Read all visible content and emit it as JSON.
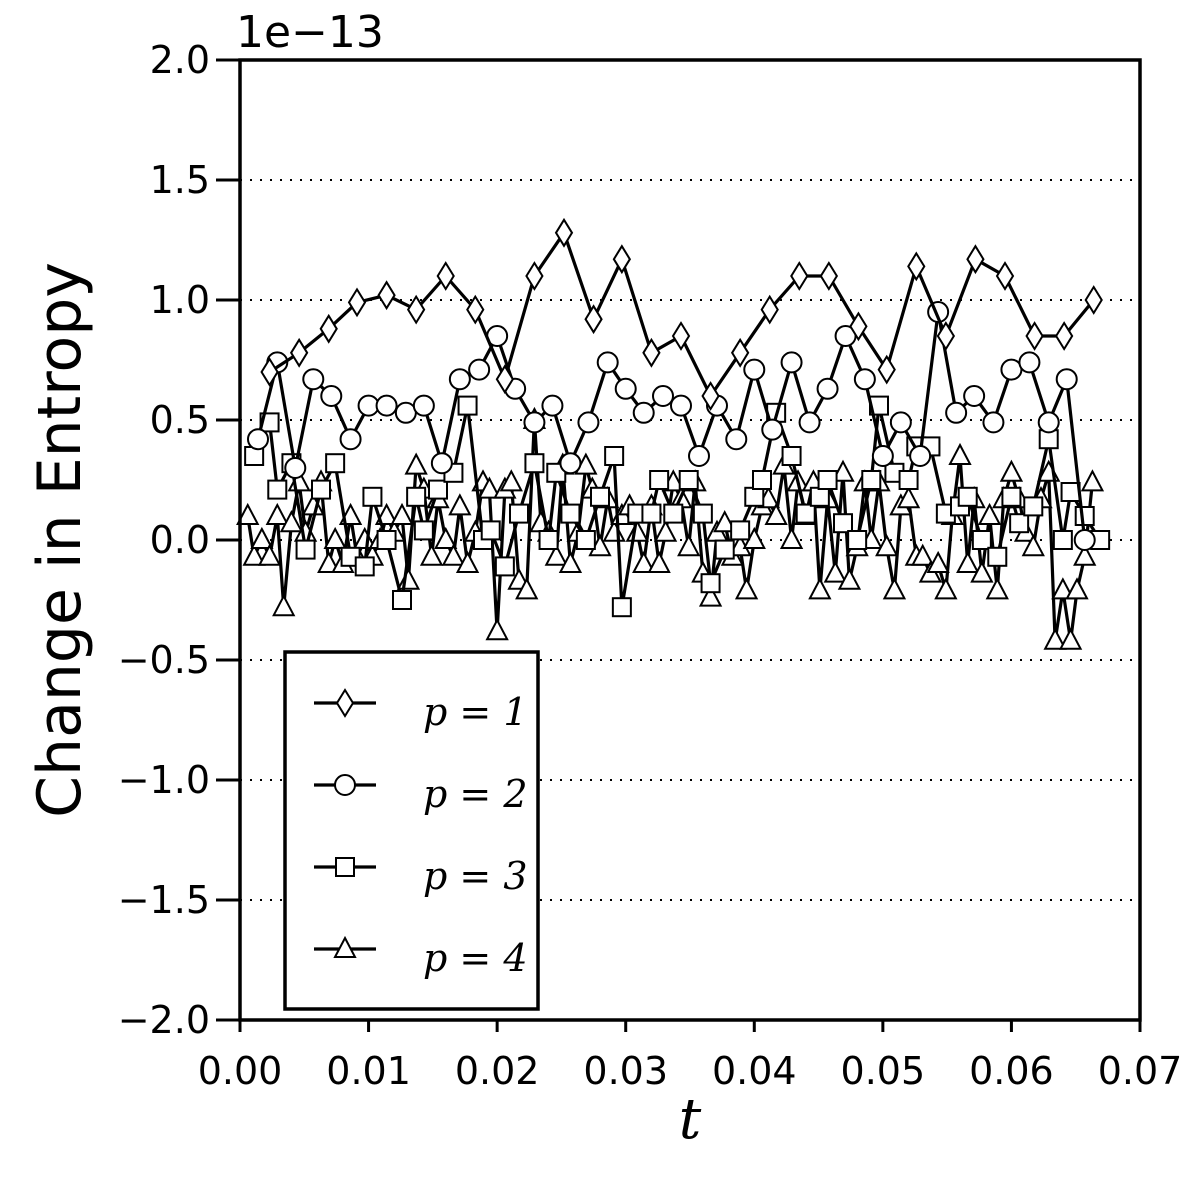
{
  "chart_data": {
    "type": "line",
    "title": "",
    "xlabel": "t",
    "ylabel": "Change in Entropy",
    "y_offset_label": "1e−13",
    "xlim": [
      0.0,
      0.07
    ],
    "ylim": [
      -2.0,
      2.0
    ],
    "x_ticks": [
      0.0,
      0.01,
      0.02,
      0.03,
      0.04,
      0.05,
      0.06,
      0.07
    ],
    "x_tick_labels": [
      "0.00",
      "0.01",
      "0.02",
      "0.03",
      "0.04",
      "0.05",
      "0.06",
      "0.07"
    ],
    "y_ticks": [
      -2.0,
      -1.5,
      -1.0,
      -0.5,
      0.0,
      0.5,
      1.0,
      1.5,
      2.0
    ],
    "y_tick_labels": [
      "−2.0",
      "−1.5",
      "−1.0",
      "−0.5",
      "0.0",
      "0.5",
      "1.0",
      "1.5",
      "2.0"
    ],
    "grid": "horizontal-dotted",
    "legend_position": "lower-left",
    "line_color": "#000000",
    "marker_fill": "#ffffff",
    "series": [
      {
        "name": "p = 1",
        "marker": "diamond",
        "x": [
          0.0023,
          0.0046,
          0.0069,
          0.0091,
          0.0114,
          0.0137,
          0.016,
          0.0183,
          0.0206,
          0.0229,
          0.0252,
          0.0275,
          0.0297,
          0.032,
          0.0343,
          0.0366,
          0.0389,
          0.0412,
          0.0435,
          0.0458,
          0.0481,
          0.0503,
          0.0526,
          0.0549,
          0.0572,
          0.0595,
          0.0618,
          0.0641,
          0.0664
        ],
        "y": [
          0.7,
          0.78,
          0.88,
          0.99,
          1.02,
          0.96,
          1.1,
          0.96,
          0.67,
          1.1,
          1.28,
          0.92,
          1.17,
          0.78,
          0.85,
          0.6,
          0.78,
          0.96,
          1.1,
          1.1,
          0.89,
          0.71,
          1.14,
          0.85,
          1.17,
          1.1,
          0.85,
          0.85,
          1.0
        ]
      },
      {
        "name": "p = 2",
        "marker": "circle",
        "x": [
          0.0014,
          0.0029,
          0.0043,
          0.0057,
          0.0071,
          0.0086,
          0.01,
          0.0114,
          0.0129,
          0.0143,
          0.0157,
          0.0171,
          0.0186,
          0.02,
          0.0214,
          0.0229,
          0.0243,
          0.0257,
          0.0271,
          0.0286,
          0.03,
          0.0314,
          0.0329,
          0.0343,
          0.0357,
          0.0371,
          0.0386,
          0.04,
          0.0414,
          0.0429,
          0.0443,
          0.0457,
          0.0471,
          0.0486,
          0.05,
          0.0514,
          0.0529,
          0.0543,
          0.0557,
          0.0571,
          0.0586,
          0.06,
          0.0614,
          0.0629,
          0.0643,
          0.0657
        ],
        "y": [
          0.42,
          0.74,
          0.3,
          0.67,
          0.6,
          0.42,
          0.56,
          0.56,
          0.53,
          0.56,
          0.32,
          0.67,
          0.71,
          0.85,
          0.63,
          0.49,
          0.56,
          0.32,
          0.49,
          0.74,
          0.63,
          0.53,
          0.6,
          0.56,
          0.35,
          0.56,
          0.42,
          0.71,
          0.46,
          0.74,
          0.49,
          0.63,
          0.85,
          0.67,
          0.35,
          0.49,
          0.35,
          0.95,
          0.53,
          0.6,
          0.49,
          0.71,
          0.74,
          0.49,
          0.67,
          0.0
        ]
      },
      {
        "name": "p = 3",
        "marker": "square",
        "x": [
          0.0011,
          0.0023,
          0.0029,
          0.004,
          0.0051,
          0.0063,
          0.0074,
          0.0086,
          0.0097,
          0.0103,
          0.0114,
          0.0126,
          0.0137,
          0.0143,
          0.0154,
          0.0166,
          0.0177,
          0.0189,
          0.0195,
          0.0206,
          0.0217,
          0.0229,
          0.024,
          0.0246,
          0.0257,
          0.0269,
          0.028,
          0.0291,
          0.0297,
          0.0309,
          0.032,
          0.0326,
          0.0337,
          0.0349,
          0.036,
          0.0366,
          0.0377,
          0.0389,
          0.04,
          0.0406,
          0.0417,
          0.0429,
          0.044,
          0.0451,
          0.0457,
          0.0469,
          0.048,
          0.0491,
          0.0497,
          0.0509,
          0.052,
          0.0526,
          0.0537,
          0.0549,
          0.056,
          0.0566,
          0.0577,
          0.0589,
          0.06,
          0.0606,
          0.0617,
          0.0629,
          0.064,
          0.0646,
          0.0657,
          0.0669
        ],
        "y": [
          0.35,
          0.49,
          0.21,
          0.32,
          -0.04,
          0.21,
          0.32,
          -0.07,
          -0.11,
          0.18,
          0.0,
          -0.25,
          0.18,
          0.04,
          0.21,
          0.28,
          0.56,
          0.0,
          0.04,
          -0.11,
          0.11,
          0.32,
          0.0,
          0.28,
          0.11,
          0.0,
          0.18,
          0.35,
          -0.28,
          0.11,
          0.11,
          0.25,
          0.11,
          0.25,
          0.11,
          -0.18,
          -0.04,
          0.04,
          0.18,
          0.25,
          0.53,
          0.35,
          0.11,
          0.18,
          0.25,
          0.07,
          0.0,
          0.25,
          0.56,
          0.28,
          0.25,
          0.39,
          0.39,
          0.11,
          0.14,
          0.18,
          0.0,
          -0.07,
          0.18,
          0.07,
          0.14,
          0.42,
          0.0,
          0.2,
          0.1,
          0.0
        ]
      },
      {
        "name": "p = 4",
        "marker": "triangle",
        "x": [
          0.0006,
          0.0011,
          0.0017,
          0.0023,
          0.0029,
          0.0034,
          0.004,
          0.0046,
          0.0051,
          0.0057,
          0.0063,
          0.0069,
          0.0074,
          0.008,
          0.0086,
          0.0091,
          0.0097,
          0.0103,
          0.0109,
          0.0114,
          0.012,
          0.0126,
          0.0131,
          0.0137,
          0.0143,
          0.0149,
          0.0154,
          0.016,
          0.0166,
          0.0171,
          0.0177,
          0.0183,
          0.0189,
          0.0194,
          0.02,
          0.0206,
          0.0211,
          0.0217,
          0.0223,
          0.0229,
          0.0234,
          0.024,
          0.0246,
          0.0251,
          0.0257,
          0.0263,
          0.0269,
          0.0274,
          0.028,
          0.0286,
          0.0291,
          0.0297,
          0.0303,
          0.0309,
          0.0314,
          0.032,
          0.0326,
          0.0331,
          0.0337,
          0.0343,
          0.0349,
          0.0354,
          0.036,
          0.0366,
          0.0371,
          0.0377,
          0.0383,
          0.0389,
          0.0394,
          0.04,
          0.0406,
          0.0411,
          0.0417,
          0.0423,
          0.0429,
          0.0434,
          0.044,
          0.0446,
          0.0451,
          0.0457,
          0.0463,
          0.0469,
          0.0474,
          0.048,
          0.0486,
          0.0491,
          0.0497,
          0.0503,
          0.0509,
          0.0514,
          0.052,
          0.0526,
          0.0531,
          0.0537,
          0.0543,
          0.0549,
          0.0554,
          0.056,
          0.0566,
          0.0571,
          0.0577,
          0.0583,
          0.0589,
          0.0594,
          0.06,
          0.0606,
          0.0611,
          0.0617,
          0.0623,
          0.0629,
          0.0634,
          0.064,
          0.0646,
          0.0651,
          0.0657,
          0.0663
        ],
        "y": [
          0.1,
          -0.07,
          0.0,
          -0.07,
          0.1,
          -0.28,
          0.07,
          0.24,
          0.03,
          0.14,
          0.24,
          -0.1,
          0.0,
          -0.1,
          0.1,
          -0.07,
          0.0,
          -0.07,
          0.0,
          0.1,
          0.03,
          0.1,
          -0.17,
          0.31,
          0.21,
          -0.07,
          0.17,
          0.0,
          -0.07,
          0.14,
          -0.1,
          0.03,
          0.24,
          0.21,
          -0.38,
          0.21,
          0.24,
          -0.17,
          -0.21,
          0.5,
          0.07,
          0.03,
          -0.07,
          0.31,
          -0.1,
          0.03,
          0.31,
          0.21,
          -0.03,
          0.17,
          0.03,
          0.1,
          0.14,
          0.03,
          -0.1,
          0.14,
          -0.1,
          0.03,
          0.24,
          0.17,
          -0.03,
          0.24,
          -0.14,
          -0.24,
          0.03,
          0.07,
          -0.07,
          -0.03,
          -0.21,
          0.0,
          0.14,
          0.17,
          0.1,
          0.31,
          0.0,
          0.24,
          0.1,
          0.24,
          -0.21,
          0.17,
          -0.14,
          0.28,
          -0.17,
          -0.03,
          0.24,
          0.0,
          0.24,
          -0.03,
          -0.21,
          0.14,
          0.17,
          -0.07,
          -0.07,
          -0.14,
          -0.1,
          -0.21,
          0.1,
          0.35,
          -0.1,
          0.17,
          -0.14,
          0.1,
          -0.21,
          0.17,
          0.28,
          0.17,
          0.03,
          -0.03,
          0.17,
          0.28,
          -0.42,
          -0.21,
          -0.42,
          -0.21,
          -0.07,
          0.24
        ]
      }
    ]
  },
  "legend": {
    "entries": [
      {
        "marker": "diamond",
        "label": "p = 1"
      },
      {
        "marker": "circle",
        "label": "p = 2"
      },
      {
        "marker": "square",
        "label": "p = 3"
      },
      {
        "marker": "triangle",
        "label": "p = 4"
      }
    ]
  }
}
